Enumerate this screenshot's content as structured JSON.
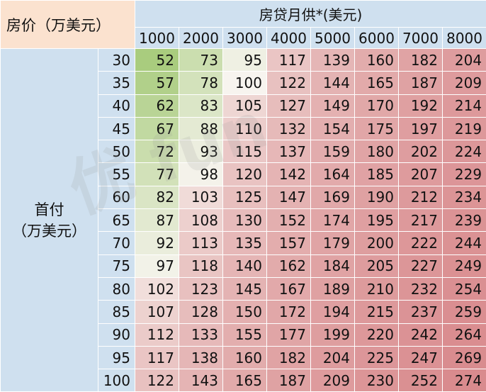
{
  "chart_data": {
    "type": "table",
    "corner_label": "房价（万美元）",
    "column_group_label": "房贷月供*(美元)",
    "row_group_label_line1": "首付",
    "row_group_label_line2": "（万美元）",
    "columns": [
      "1000",
      "2000",
      "3000",
      "4000",
      "5000",
      "6000",
      "7000",
      "8000"
    ],
    "rows": [
      "30",
      "35",
      "40",
      "45",
      "50",
      "55",
      "60",
      "65",
      "70",
      "75",
      "80",
      "85",
      "90",
      "95",
      "100"
    ],
    "values": [
      [
        52,
        73,
        95,
        117,
        139,
        160,
        182,
        204
      ],
      [
        57,
        78,
        100,
        122,
        144,
        165,
        187,
        209
      ],
      [
        62,
        83,
        105,
        127,
        149,
        170,
        192,
        214
      ],
      [
        67,
        88,
        110,
        132,
        154,
        175,
        197,
        219
      ],
      [
        72,
        93,
        115,
        137,
        159,
        180,
        202,
        224
      ],
      [
        77,
        98,
        120,
        142,
        164,
        185,
        207,
        229
      ],
      [
        82,
        103,
        125,
        147,
        169,
        190,
        212,
        234
      ],
      [
        87,
        108,
        130,
        152,
        174,
        195,
        217,
        239
      ],
      [
        92,
        113,
        135,
        157,
        179,
        200,
        222,
        244
      ],
      [
        97,
        118,
        140,
        162,
        184,
        205,
        227,
        249
      ],
      [
        102,
        123,
        145,
        167,
        189,
        210,
        232,
        254
      ],
      [
        107,
        128,
        150,
        172,
        194,
        215,
        237,
        259
      ],
      [
        112,
        133,
        155,
        177,
        199,
        220,
        242,
        264
      ],
      [
        117,
        138,
        160,
        182,
        204,
        225,
        247,
        269
      ],
      [
        122,
        143,
        165,
        187,
        209,
        230,
        252,
        274
      ]
    ],
    "color_scale": {
      "low": "#a9cc7e",
      "mid": "#f7f4ef",
      "high": "#d98b8e"
    }
  }
}
